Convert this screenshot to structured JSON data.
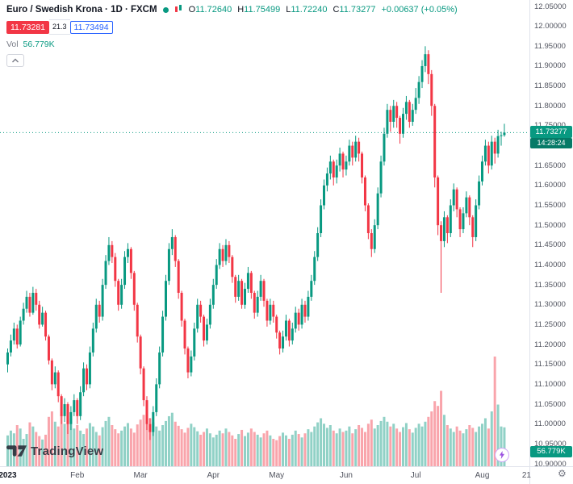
{
  "header": {
    "symbol_title": "Euro / Swedish Krona · 1D · FXCM",
    "ohlc": {
      "open_label": "O",
      "open": "11.72640",
      "high_label": "H",
      "high": "11.75499",
      "low_label": "L",
      "low": "11.72240",
      "close_label": "C",
      "close": "11.73277",
      "change": "+0.00637 (+0.05%)"
    },
    "sell_price": "11.73281",
    "spread": "21.3",
    "buy_price": "11.73494",
    "vol_label": "Vol",
    "vol_value": "56.779K"
  },
  "price_axis": {
    "tick_labels": [
      "12.05000",
      "12.00000",
      "11.95000",
      "11.90000",
      "11.85000",
      "11.80000",
      "11.75000",
      "11.70000",
      "11.65000",
      "11.60000",
      "11.55000",
      "11.50000",
      "11.45000",
      "11.40000",
      "11.35000",
      "11.30000",
      "11.25000",
      "11.20000",
      "11.15000",
      "11.10000",
      "11.05000",
      "11.00000",
      "10.95000",
      "10.90000"
    ],
    "current_price": "11.73277",
    "countdown": "14:28:24",
    "volume_tag": "56.779K"
  },
  "footer": {
    "logo_text": "TradingView"
  },
  "colors": {
    "up": "#089981",
    "down": "#f23645",
    "volume_up": "rgba(8,153,129,0.45)",
    "volume_down": "rgba(242,54,69,0.45)",
    "sell": "#f23645",
    "buy": "#2962ff"
  },
  "chart_data": {
    "type": "candlestick",
    "title": "Euro / Swedish Krona",
    "interval": "1D",
    "exchange": "FXCM",
    "ylim": [
      10.9,
      12.05
    ],
    "last_price": 11.73277,
    "volume_unit": "K",
    "time_labels": [
      {
        "label": "2023",
        "index": 0,
        "major": true
      },
      {
        "label": "Feb",
        "index": 22
      },
      {
        "label": "Mar",
        "index": 42
      },
      {
        "label": "Apr",
        "index": 65
      },
      {
        "label": "May",
        "index": 85
      },
      {
        "label": "Jun",
        "index": 107
      },
      {
        "label": "Jul",
        "index": 129
      },
      {
        "label": "Aug",
        "index": 150
      },
      {
        "label": "21",
        "index": 164
      }
    ],
    "candles": [
      [
        11.15,
        11.19,
        11.13,
        11.18
      ],
      [
        11.18,
        11.225,
        11.17,
        11.21
      ],
      [
        11.21,
        11.255,
        11.2,
        11.24
      ],
      [
        11.24,
        11.25,
        11.19,
        11.2
      ],
      [
        11.2,
        11.27,
        11.195,
        11.26
      ],
      [
        11.26,
        11.305,
        11.25,
        11.29
      ],
      [
        11.29,
        11.335,
        11.28,
        11.32
      ],
      [
        11.32,
        11.33,
        11.27,
        11.28
      ],
      [
        11.28,
        11.345,
        11.275,
        11.33
      ],
      [
        11.33,
        11.34,
        11.285,
        11.3
      ],
      [
        11.3,
        11.31,
        11.24,
        11.25
      ],
      [
        11.25,
        11.295,
        11.245,
        11.28
      ],
      [
        11.28,
        11.285,
        11.21,
        11.22
      ],
      [
        11.22,
        11.225,
        11.15,
        11.16
      ],
      [
        11.16,
        11.165,
        11.085,
        11.1
      ],
      [
        11.1,
        11.145,
        11.09,
        11.13
      ],
      [
        11.13,
        11.135,
        11.055,
        11.07
      ],
      [
        11.07,
        11.075,
        11.0,
        11.02
      ],
      [
        11.02,
        11.065,
        11.005,
        11.05
      ],
      [
        11.05,
        11.055,
        10.975,
        11.0
      ],
      [
        11.0,
        11.045,
        10.985,
        11.03
      ],
      [
        11.03,
        11.075,
        11.02,
        11.06
      ],
      [
        11.06,
        11.065,
        11.0,
        11.02
      ],
      [
        11.02,
        11.095,
        11.01,
        11.08
      ],
      [
        11.08,
        11.155,
        11.07,
        11.14
      ],
      [
        11.14,
        11.15,
        11.085,
        11.1
      ],
      [
        11.1,
        11.195,
        11.09,
        11.18
      ],
      [
        11.18,
        11.255,
        11.17,
        11.24
      ],
      [
        11.24,
        11.315,
        11.23,
        11.3
      ],
      [
        11.3,
        11.31,
        11.255,
        11.27
      ],
      [
        11.27,
        11.365,
        11.26,
        11.35
      ],
      [
        11.35,
        11.425,
        11.34,
        11.41
      ],
      [
        11.41,
        11.47,
        11.4,
        11.45
      ],
      [
        11.45,
        11.46,
        11.405,
        11.42
      ],
      [
        11.42,
        11.43,
        11.345,
        11.36
      ],
      [
        11.36,
        11.365,
        11.285,
        11.3
      ],
      [
        11.3,
        11.365,
        11.29,
        11.35
      ],
      [
        11.35,
        11.435,
        11.34,
        11.42
      ],
      [
        11.42,
        11.455,
        11.405,
        11.44
      ],
      [
        11.44,
        11.445,
        11.365,
        11.38
      ],
      [
        11.38,
        11.385,
        11.285,
        11.3
      ],
      [
        11.3,
        11.305,
        11.205,
        11.22
      ],
      [
        11.22,
        11.225,
        11.125,
        11.14
      ],
      [
        11.14,
        11.145,
        11.045,
        11.06
      ],
      [
        11.06,
        11.07,
        10.985,
        11.0
      ],
      [
        11.0,
        11.015,
        10.96,
        10.98
      ],
      [
        10.98,
        11.045,
        10.97,
        11.03
      ],
      [
        11.03,
        11.115,
        11.02,
        11.1
      ],
      [
        11.1,
        11.195,
        11.09,
        11.18
      ],
      [
        11.18,
        11.285,
        11.17,
        11.27
      ],
      [
        11.27,
        11.375,
        11.26,
        11.36
      ],
      [
        11.36,
        11.455,
        11.35,
        11.44
      ],
      [
        11.44,
        11.49,
        11.425,
        11.47
      ],
      [
        11.47,
        11.475,
        11.395,
        11.41
      ],
      [
        11.41,
        11.415,
        11.315,
        11.33
      ],
      [
        11.33,
        11.335,
        11.245,
        11.26
      ],
      [
        11.26,
        11.265,
        11.175,
        11.19
      ],
      [
        11.19,
        11.195,
        11.115,
        11.13
      ],
      [
        11.13,
        11.185,
        11.12,
        11.17
      ],
      [
        11.17,
        11.255,
        11.16,
        11.24
      ],
      [
        11.24,
        11.315,
        11.23,
        11.3
      ],
      [
        11.3,
        11.31,
        11.255,
        11.27
      ],
      [
        11.27,
        11.275,
        11.195,
        11.21
      ],
      [
        11.21,
        11.265,
        11.2,
        11.25
      ],
      [
        11.25,
        11.315,
        11.24,
        11.3
      ],
      [
        11.3,
        11.365,
        11.29,
        11.35
      ],
      [
        11.35,
        11.415,
        11.34,
        11.4
      ],
      [
        11.4,
        11.455,
        11.39,
        11.44
      ],
      [
        11.44,
        11.45,
        11.395,
        11.41
      ],
      [
        11.41,
        11.465,
        11.4,
        11.45
      ],
      [
        11.45,
        11.46,
        11.405,
        11.42
      ],
      [
        11.42,
        11.425,
        11.355,
        11.37
      ],
      [
        11.37,
        11.375,
        11.305,
        11.32
      ],
      [
        11.32,
        11.375,
        11.31,
        11.36
      ],
      [
        11.36,
        11.365,
        11.29,
        11.3
      ],
      [
        11.3,
        11.355,
        11.29,
        11.34
      ],
      [
        11.34,
        11.395,
        11.33,
        11.38
      ],
      [
        11.38,
        11.385,
        11.315,
        11.33
      ],
      [
        11.33,
        11.335,
        11.265,
        11.28
      ],
      [
        11.28,
        11.335,
        11.27,
        11.32
      ],
      [
        11.32,
        11.375,
        11.31,
        11.36
      ],
      [
        11.36,
        11.365,
        11.295,
        11.31
      ],
      [
        11.31,
        11.315,
        11.245,
        11.26
      ],
      [
        11.26,
        11.315,
        11.25,
        11.3
      ],
      [
        11.3,
        11.31,
        11.255,
        11.27
      ],
      [
        11.27,
        11.275,
        11.215,
        11.23
      ],
      [
        11.23,
        11.235,
        11.175,
        11.19
      ],
      [
        11.19,
        11.235,
        11.18,
        11.22
      ],
      [
        11.22,
        11.275,
        11.21,
        11.26
      ],
      [
        11.26,
        11.265,
        11.195,
        11.21
      ],
      [
        11.21,
        11.255,
        11.2,
        11.24
      ],
      [
        11.24,
        11.295,
        11.23,
        11.28
      ],
      [
        11.28,
        11.29,
        11.235,
        11.25
      ],
      [
        11.25,
        11.315,
        11.24,
        11.3
      ],
      [
        11.3,
        11.31,
        11.255,
        11.27
      ],
      [
        11.27,
        11.335,
        11.26,
        11.32
      ],
      [
        11.32,
        11.375,
        11.31,
        11.36
      ],
      [
        11.36,
        11.435,
        11.35,
        11.42
      ],
      [
        11.42,
        11.495,
        11.41,
        11.48
      ],
      [
        11.48,
        11.565,
        11.47,
        11.55
      ],
      [
        11.55,
        11.615,
        11.54,
        11.6
      ],
      [
        11.6,
        11.645,
        11.585,
        11.63
      ],
      [
        11.63,
        11.675,
        11.615,
        11.66
      ],
      [
        11.66,
        11.665,
        11.6,
        11.62
      ],
      [
        11.62,
        11.665,
        11.605,
        11.65
      ],
      [
        11.65,
        11.695,
        11.635,
        11.68
      ],
      [
        11.68,
        11.685,
        11.62,
        11.64
      ],
      [
        11.64,
        11.675,
        11.625,
        11.66
      ],
      [
        11.66,
        11.715,
        11.65,
        11.7
      ],
      [
        11.7,
        11.71,
        11.65,
        11.67
      ],
      [
        11.67,
        11.725,
        11.66,
        11.71
      ],
      [
        11.71,
        11.72,
        11.66,
        11.68
      ],
      [
        11.68,
        11.685,
        11.605,
        11.62
      ],
      [
        11.62,
        11.625,
        11.535,
        11.55
      ],
      [
        11.55,
        11.555,
        11.465,
        11.48
      ],
      [
        11.48,
        11.49,
        11.42,
        11.44
      ],
      [
        11.44,
        11.515,
        11.43,
        11.5
      ],
      [
        11.5,
        11.595,
        11.49,
        11.58
      ],
      [
        11.58,
        11.675,
        11.57,
        11.66
      ],
      [
        11.66,
        11.745,
        11.65,
        11.73
      ],
      [
        11.73,
        11.805,
        11.72,
        11.79
      ],
      [
        11.79,
        11.8,
        11.735,
        11.76
      ],
      [
        11.76,
        11.815,
        11.745,
        11.8
      ],
      [
        11.8,
        11.81,
        11.745,
        11.77
      ],
      [
        11.77,
        11.775,
        11.705,
        11.73
      ],
      [
        11.73,
        11.795,
        11.72,
        11.78
      ],
      [
        11.78,
        11.825,
        11.765,
        11.81
      ],
      [
        11.81,
        11.815,
        11.745,
        11.76
      ],
      [
        11.76,
        11.805,
        11.75,
        11.79
      ],
      [
        11.79,
        11.845,
        11.78,
        11.82
      ],
      [
        11.82,
        11.875,
        11.805,
        11.86
      ],
      [
        11.86,
        11.915,
        11.845,
        11.9
      ],
      [
        11.9,
        11.95,
        11.885,
        11.93
      ],
      [
        11.93,
        11.94,
        11.855,
        11.88
      ],
      [
        11.88,
        11.89,
        11.775,
        11.8
      ],
      [
        11.8,
        11.805,
        11.595,
        11.62
      ],
      [
        11.62,
        11.625,
        11.475,
        11.5
      ],
      [
        11.5,
        11.51,
        11.33,
        11.46
      ],
      [
        11.46,
        11.535,
        11.445,
        11.52
      ],
      [
        11.52,
        11.525,
        11.455,
        11.48
      ],
      [
        11.48,
        11.565,
        11.47,
        11.55
      ],
      [
        11.55,
        11.605,
        11.535,
        11.59
      ],
      [
        11.59,
        11.595,
        11.52,
        11.54
      ],
      [
        11.54,
        11.545,
        11.47,
        11.49
      ],
      [
        11.49,
        11.545,
        11.48,
        11.53
      ],
      [
        11.53,
        11.585,
        11.52,
        11.57
      ],
      [
        11.57,
        11.575,
        11.5,
        11.52
      ],
      [
        11.52,
        11.525,
        11.445,
        11.47
      ],
      [
        11.47,
        11.565,
        11.46,
        11.55
      ],
      [
        11.55,
        11.625,
        11.54,
        11.61
      ],
      [
        11.61,
        11.675,
        11.6,
        11.66
      ],
      [
        11.66,
        11.715,
        11.65,
        11.7
      ],
      [
        11.7,
        11.71,
        11.63,
        11.65
      ],
      [
        11.65,
        11.725,
        11.64,
        11.71
      ],
      [
        11.71,
        11.72,
        11.655,
        11.68
      ],
      [
        11.68,
        11.74,
        11.67,
        11.724
      ],
      [
        11.724,
        11.735,
        11.7,
        11.726
      ],
      [
        11.7264,
        11.75499,
        11.7224,
        11.73277
      ]
    ],
    "volumes": [
      45,
      52,
      48,
      60,
      55,
      40,
      47,
      64,
      58,
      50,
      44,
      39,
      46,
      72,
      80,
      65,
      58,
      75,
      62,
      85,
      70,
      55,
      60,
      52,
      47,
      55,
      63,
      58,
      50,
      45,
      57,
      66,
      72,
      60,
      54,
      48,
      52,
      58,
      63,
      55,
      49,
      61,
      68,
      75,
      82,
      70,
      64,
      58,
      52,
      60,
      66,
      73,
      78,
      65,
      59,
      54,
      49,
      56,
      62,
      57,
      51,
      46,
      50,
      55,
      48,
      42,
      46,
      52,
      48,
      55,
      50,
      45,
      40,
      47,
      53,
      44,
      49,
      55,
      50,
      46,
      42,
      48,
      52,
      45,
      40,
      38,
      44,
      49,
      45,
      40,
      46,
      52,
      47,
      42,
      48,
      54,
      50,
      58,
      64,
      70,
      62,
      56,
      60,
      52,
      48,
      55,
      50,
      52,
      58,
      48,
      54,
      60,
      56,
      50,
      62,
      68,
      55,
      60,
      66,
      72,
      65,
      58,
      62,
      55,
      50,
      57,
      63,
      54,
      49,
      56,
      62,
      58,
      65,
      72,
      80,
      95,
      88,
      110,
      75,
      60,
      55,
      50,
      58,
      52,
      48,
      54,
      60,
      56,
      50,
      58,
      62,
      70,
      55,
      80,
      160,
      90,
      58,
      56.779
    ]
  }
}
